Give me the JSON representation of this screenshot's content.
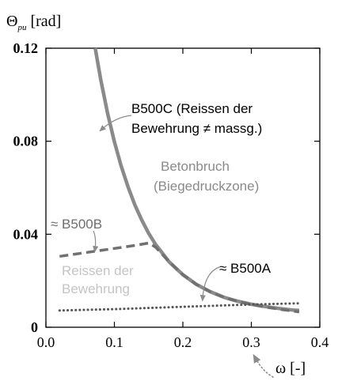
{
  "chart_data": {
    "type": "line",
    "ylabel_symbol": "Θ",
    "ylabel_sub": "pu",
    "ylabel_unit": "[rad]",
    "xlabel": "ω [-]",
    "xlim": [
      0,
      0.4
    ],
    "ylim": [
      0,
      0.12
    ],
    "xticks": [
      {
        "value": 0.0,
        "label": "0.0"
      },
      {
        "value": 0.1,
        "label": "0.1"
      },
      {
        "value": 0.2,
        "label": "0.2"
      },
      {
        "value": 0.3,
        "label": "0.3"
      },
      {
        "value": 0.4,
        "label": "0.4"
      }
    ],
    "yticks": [
      {
        "value": 0.0,
        "label": "0"
      },
      {
        "value": 0.04,
        "label": "0.04"
      },
      {
        "value": 0.08,
        "label": "0.08"
      },
      {
        "value": 0.12,
        "label": "0.12"
      }
    ],
    "grid": false,
    "series": [
      {
        "key": "b500c",
        "style": "solid",
        "color": "#8a8a8a",
        "points": [
          [
            0.072,
            0.12
          ],
          [
            0.08,
            0.1066
          ],
          [
            0.09,
            0.0922
          ],
          [
            0.1,
            0.0798
          ],
          [
            0.11,
            0.0693
          ],
          [
            0.12,
            0.0603
          ],
          [
            0.13,
            0.0526
          ],
          [
            0.14,
            0.0461
          ],
          [
            0.15,
            0.0405
          ],
          [
            0.16,
            0.0357
          ],
          [
            0.18,
            0.0281
          ],
          [
            0.2,
            0.0226
          ],
          [
            0.22,
            0.0184
          ],
          [
            0.24,
            0.0153
          ],
          [
            0.26,
            0.0129
          ],
          [
            0.28,
            0.0112
          ],
          [
            0.3,
            0.0099
          ],
          [
            0.32,
            0.0089
          ],
          [
            0.34,
            0.0081
          ],
          [
            0.36,
            0.0074
          ],
          [
            0.37,
            0.0072
          ]
        ]
      },
      {
        "key": "b500b",
        "style": "dashed",
        "color": "#707070",
        "points": [
          [
            0.02,
            0.0305
          ],
          [
            0.06,
            0.0322
          ],
          [
            0.1,
            0.0339
          ],
          [
            0.13,
            0.0352
          ],
          [
            0.15,
            0.0362
          ],
          [
            0.16,
            0.0345
          ],
          [
            0.18,
            0.0281
          ],
          [
            0.2,
            0.0226
          ],
          [
            0.22,
            0.0184
          ],
          [
            0.24,
            0.0153
          ],
          [
            0.26,
            0.0129
          ],
          [
            0.28,
            0.0112
          ],
          [
            0.3,
            0.0098
          ],
          [
            0.32,
            0.0087
          ],
          [
            0.34,
            0.0078
          ],
          [
            0.37,
            0.0066
          ]
        ]
      },
      {
        "key": "b500a",
        "style": "dotted",
        "color": "#555555",
        "points": [
          [
            0.02,
            0.0072
          ],
          [
            0.1,
            0.0078
          ],
          [
            0.2,
            0.0088
          ],
          [
            0.3,
            0.0098
          ],
          [
            0.37,
            0.0103
          ]
        ]
      }
    ],
    "annotations": {
      "b500c_line1": "B500C (Reissen der",
      "b500c_line2": "Bewehrung ≠ massg.)",
      "betonbruch_line1": "Betonbruch",
      "betonbruch_line2": "(Biegedruckzone)",
      "b500b": "≈ B500B",
      "reissen_line1": "Reissen der",
      "reissen_line2": "Bewehrung",
      "b500a": "≈ B500A"
    }
  }
}
